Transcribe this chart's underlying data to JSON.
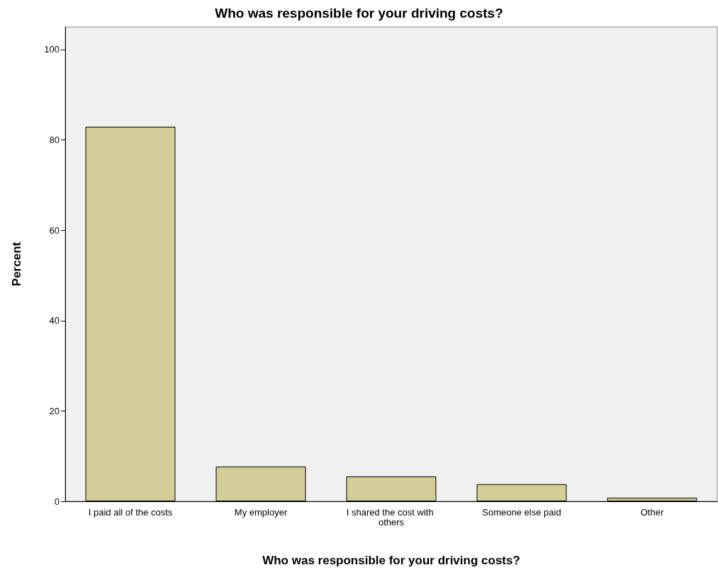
{
  "chart_data": {
    "type": "bar",
    "title": "Who was responsible for your driving costs?",
    "xlabel": "Who was responsible for your driving costs?",
    "ylabel": "Percent",
    "categories": [
      "I paid all of the costs",
      "My employer",
      "I shared the cost with others",
      "Someone else paid",
      "Other"
    ],
    "values": [
      82.9,
      7.7,
      5.5,
      3.8,
      0.8
    ],
    "color": "#d3ce97",
    "ylim": [
      0,
      105
    ],
    "yticks": [
      0,
      20,
      40,
      60,
      80,
      100
    ],
    "grid": false
  }
}
